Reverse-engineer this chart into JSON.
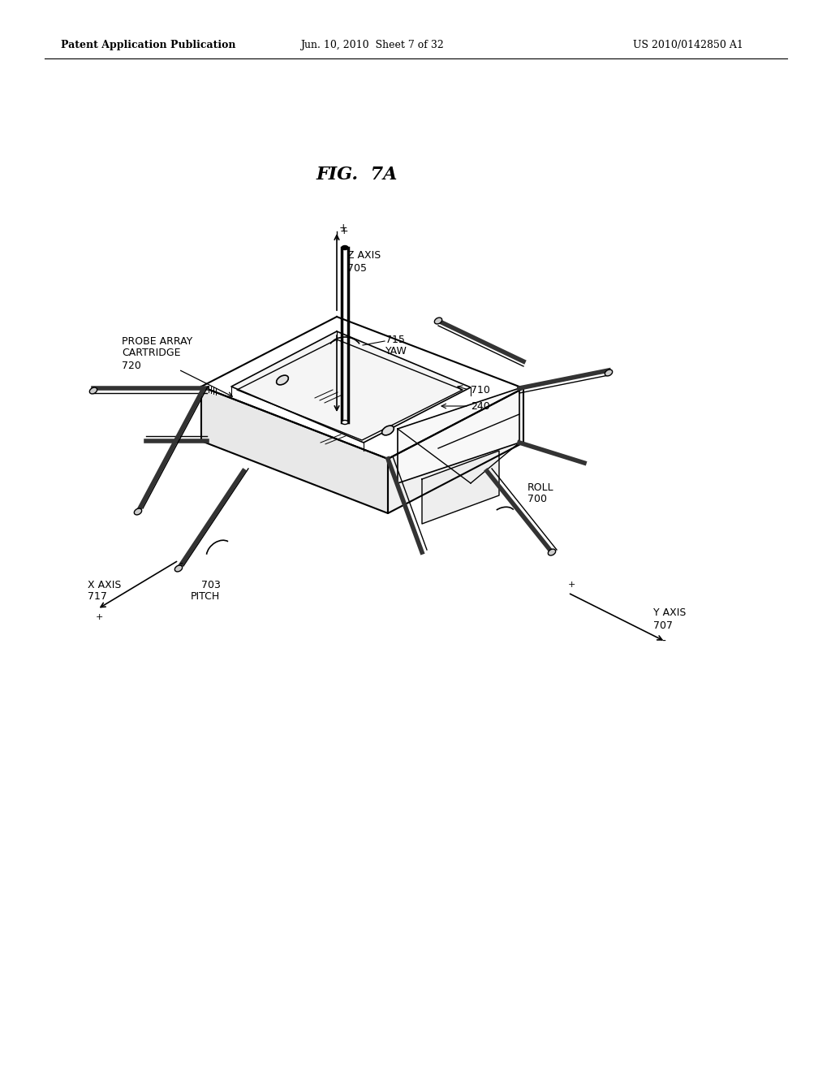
{
  "background_color": "#ffffff",
  "header_left": "Patent Application Publication",
  "header_mid": "Jun. 10, 2010  Sheet 7 of 32",
  "header_right": "US 2010/0142850 A1",
  "fig_label": "FIG. 7A",
  "labels": {
    "probe_array": [
      "PROBE ARRAY",
      "CARTRIDGE",
      "720"
    ],
    "z_axis": [
      "Z AXIS",
      "705"
    ],
    "yaw": [
      "715",
      "YAW"
    ],
    "item_710": "710",
    "item_240": "240",
    "roll": [
      "ROLL",
      "700"
    ],
    "x_axis": [
      "X AXIS",
      "717"
    ],
    "pitch": [
      "703",
      "PITCH"
    ],
    "y_axis": [
      "Y AXIS",
      "707"
    ]
  }
}
